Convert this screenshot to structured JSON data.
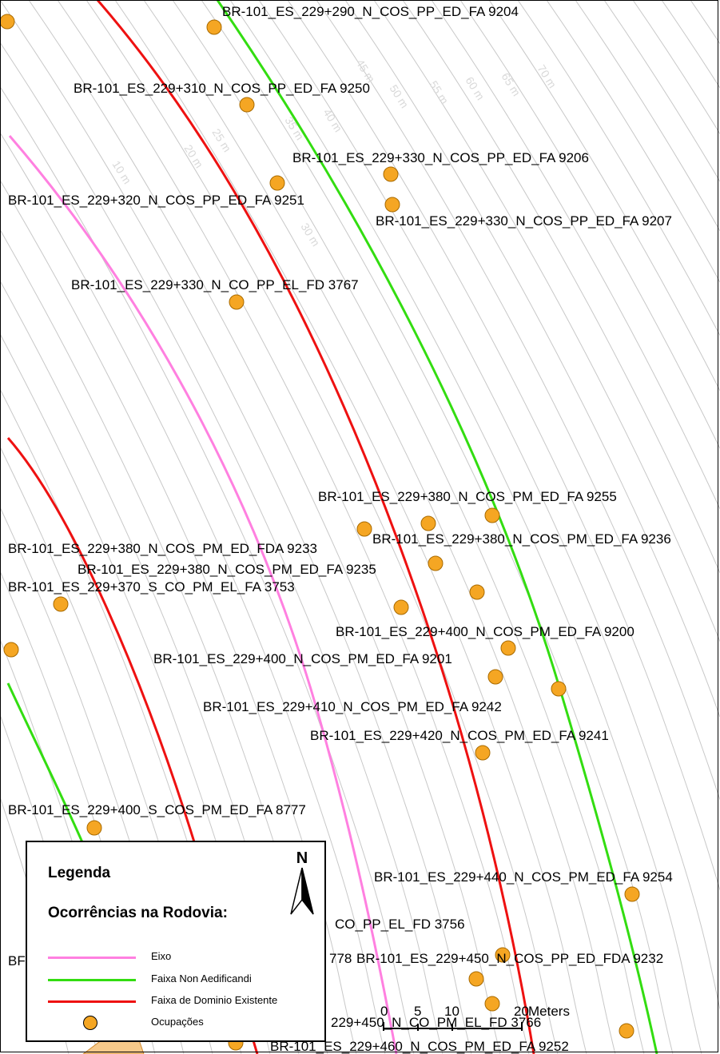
{
  "map": {
    "colors": {
      "eixo": "#ff80e0",
      "non_aedificandi": "#33dd11",
      "dominio": "#ee1111",
      "ocupacao_fill": "#f5a623",
      "buffer_line": "#c8c8c8"
    },
    "buffer_labels": [
      "10 m",
      "20 m",
      "25 m",
      "30 m",
      "35 m",
      "40 m",
      "45 m",
      "50 m",
      "55 m",
      "60 m",
      "65 m",
      "70 m"
    ],
    "occurrence_labels": [
      "BR-101_ES_229+290_N_COS_PP_ED_FA 9204",
      "BR-101_ES_229+310_N_COS_PP_ED_FA 9250",
      "BR-101_ES_229+330_N_COS_PP_ED_FA 9206",
      "BR-101_ES_229+320_N_COS_PP_ED_FA 9251",
      "BR-101_ES_229+330_N_COS_PP_ED_FA 9207",
      "BR-101_ES_229+330_N_CO_PP_EL_FD 3767",
      "BR-101_ES_229+380_N_COS_PM_ED_FA 9255",
      "BR-101_ES_229+380_N_COS_PM_ED_FDA 9233",
      "BR-101_ES_229+380_N_COS_PM_ED_FA 9236",
      "BR-101_ES_229+380_N_COS_PM_ED_FA 9235",
      "BR-101_ES_229+370_S_CO_PM_EL_FA 3753",
      "BR-101_ES_229+400_N_COS_PM_ED_FA 9200",
      "BR-101_ES_229+400_N_COS_PM_ED_FA 9201",
      "BR-101_ES_229+410_N_COS_PM_ED_FA 9242",
      "BR-101_ES_229+420_N_COS_PM_ED_FA 9241",
      "BR-101_ES_229+400_S_COS_PM_ED_FA 8777",
      "BR-101_ES_229+440_N_COS_PM_ED_FA 9254",
      "CO_PP_EL_FD 3756",
      "778",
      "BR-101_ES_229+450_N_COS_PP_ED_FDA 9232",
      "BR-101_ES_229+460_N_COS_PM_ED_FA 9252",
      "229+450_N_CO_PM_EL_FD 3766",
      "BF"
    ],
    "scale_bar": {
      "ticks": [
        "0",
        "5",
        "10",
        "20"
      ],
      "unit": "Meters"
    }
  },
  "legend": {
    "title": "Legenda",
    "subtitle": "Ocorrências na Rodovia:",
    "north_label": "N",
    "items": [
      {
        "label": "Eixo",
        "color": "#ff80e0"
      },
      {
        "label": "Faixa Non Aedificandi",
        "color": "#33dd11"
      },
      {
        "label": "Faixa de Dominio Existente",
        "color": "#ee1111"
      },
      {
        "label": "Ocupações",
        "color": "#f5a623"
      }
    ]
  }
}
